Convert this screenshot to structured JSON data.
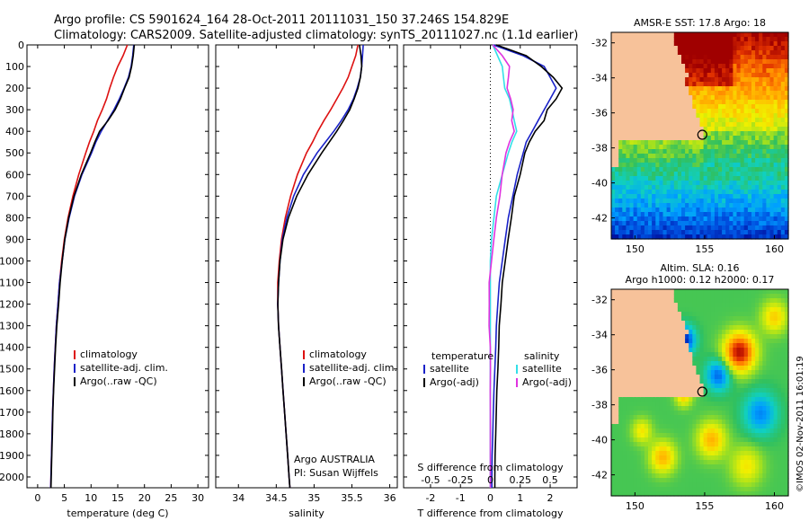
{
  "header": {
    "line1": "Argo profile: CS 5901624_164 28-Oct-2011 20111031_150 37.246S 154.829E",
    "line2": "Climatology: CARS2009. Satellite-adjusted climatology: synTS_20111027.nc (1.1d earlier)"
  },
  "credit": "©IMOS 02-Nov-2011 16:01:19",
  "colors": {
    "climatology": "#dd1111",
    "satellite": "#1a22c8",
    "argo": "#000000",
    "sat_salinity": "#33e0e8",
    "argo_salinity": "#e033e0",
    "land": "#f7c29a"
  },
  "chart_data": [
    {
      "id": "temperature",
      "type": "line",
      "xlabel": "temperature (deg C)",
      "ylabel": "",
      "xlim": [
        -2,
        32
      ],
      "ylim": [
        0,
        2050
      ],
      "y_reversed": true,
      "xticks": [
        0,
        5,
        10,
        15,
        20,
        25,
        30
      ],
      "yticks": [
        0,
        100,
        200,
        300,
        400,
        500,
        600,
        700,
        800,
        900,
        1000,
        1100,
        1200,
        1300,
        1400,
        1500,
        1600,
        1700,
        1800,
        1900,
        2000
      ],
      "depth": [
        0,
        50,
        100,
        150,
        200,
        250,
        300,
        350,
        400,
        450,
        500,
        600,
        700,
        800,
        900,
        1000,
        1100,
        1200,
        1300,
        1400,
        1500,
        1600,
        1700,
        1800,
        1900,
        2000,
        2050
      ],
      "legend": [
        "climatology",
        "satellite-adj. clim.",
        "Argo(..raw -QC)"
      ],
      "series": [
        {
          "name": "climatology",
          "color": "#dd1111",
          "values": [
            16.8,
            16.0,
            15.0,
            14.2,
            13.5,
            12.9,
            12.1,
            11.2,
            10.5,
            9.7,
            9.0,
            7.7,
            6.6,
            5.7,
            5.0,
            4.5,
            4.1,
            3.8,
            3.5,
            3.3,
            3.1,
            2.95,
            2.8,
            2.7,
            2.6,
            2.5,
            2.45
          ]
        },
        {
          "name": "satellite-adj. clim.",
          "color": "#1a22c8",
          "values": [
            18.0,
            17.8,
            17.5,
            17.0,
            16.2,
            15.3,
            14.3,
            13.1,
            11.9,
            10.9,
            10.1,
            8.3,
            6.9,
            5.9,
            5.1,
            4.6,
            4.1,
            3.8,
            3.5,
            3.3,
            3.1,
            2.95,
            2.8,
            2.7,
            2.6,
            2.5,
            2.45
          ]
        },
        {
          "name": "Argo(..raw -QC)",
          "color": "#000000",
          "values": [
            18.1,
            17.9,
            17.6,
            17.1,
            16.3,
            15.5,
            14.5,
            13.2,
            11.6,
            10.7,
            9.9,
            8.2,
            6.8,
            5.8,
            5.1,
            4.6,
            4.2,
            3.9,
            3.6,
            3.35,
            3.15,
            3.0,
            2.85,
            2.75,
            2.65,
            2.55,
            2.5
          ]
        }
      ]
    },
    {
      "id": "salinity",
      "type": "line",
      "xlabel": "salinity",
      "ylabel": "",
      "xlim": [
        33.7,
        36.1
      ],
      "ylim": [
        0,
        2050
      ],
      "y_reversed": true,
      "xticks": [
        34,
        34.5,
        35,
        35.5,
        36
      ],
      "depth": [
        0,
        50,
        100,
        150,
        200,
        250,
        300,
        350,
        400,
        450,
        500,
        600,
        700,
        800,
        900,
        1000,
        1100,
        1200,
        1300,
        1400,
        1500,
        1600,
        1700,
        1800,
        1900,
        2000,
        2050
      ],
      "legend": [
        "climatology",
        "satellite-adj. clim.",
        "Argo(..raw -QC)"
      ],
      "annotation": [
        "Argo AUSTRALIA",
        "PI: Susan Wijffels"
      ],
      "series": [
        {
          "name": "climatology",
          "color": "#dd1111",
          "values": [
            35.58,
            35.55,
            35.5,
            35.45,
            35.38,
            35.3,
            35.22,
            35.13,
            35.05,
            34.98,
            34.9,
            34.78,
            34.69,
            34.62,
            34.57,
            34.54,
            34.52,
            34.52,
            34.53,
            34.55,
            34.57,
            34.59,
            34.61,
            34.63,
            34.65,
            34.67,
            34.68
          ]
        },
        {
          "name": "satellite-adj. clim.",
          "color": "#1a22c8",
          "values": [
            35.65,
            35.64,
            35.63,
            35.61,
            35.57,
            35.52,
            35.45,
            35.36,
            35.26,
            35.15,
            35.04,
            34.86,
            34.73,
            34.64,
            34.58,
            34.55,
            34.53,
            34.52,
            34.53,
            34.55,
            34.57,
            34.59,
            34.61,
            34.63,
            34.65,
            34.67,
            34.68
          ]
        },
        {
          "name": "Argo(..raw -QC)",
          "color": "#000000",
          "values": [
            35.6,
            35.62,
            35.63,
            35.61,
            35.58,
            35.53,
            35.47,
            35.39,
            35.3,
            35.2,
            35.1,
            34.92,
            34.77,
            34.66,
            34.59,
            34.55,
            34.53,
            34.52,
            34.53,
            34.55,
            34.57,
            34.59,
            34.61,
            34.63,
            34.65,
            34.67,
            34.68
          ]
        }
      ]
    },
    {
      "id": "difference",
      "type": "line",
      "xlabel": "T difference from climatology",
      "top_xlabel": "S difference from climatology",
      "xlim": [
        -2.9,
        2.9
      ],
      "ylim": [
        0,
        2050
      ],
      "y_reversed": true,
      "xticks": [
        -2,
        -1,
        0,
        1,
        2
      ],
      "top_xticks": [
        -0.5,
        -0.25,
        0,
        0.25,
        0.5
      ],
      "top_xtick_labels": [
        "-0.5",
        "-0.25",
        "0",
        "0.25",
        "0.5"
      ],
      "depth": [
        0,
        50,
        100,
        150,
        200,
        250,
        300,
        350,
        400,
        450,
        500,
        600,
        700,
        800,
        900,
        1000,
        1100,
        1200,
        1300,
        1400,
        1500,
        1600,
        1700,
        1800,
        1900,
        2000,
        2050
      ],
      "legend": {
        "temperature_title": "temperature",
        "salinity_title": "salinity",
        "items": [
          "satellite",
          "Argo(-adj)",
          "satellite",
          "Argo(-adj)"
        ]
      },
      "series": [
        {
          "name": "satellite",
          "group": "temperature",
          "color": "#1a22c8",
          "values": [
            0.1,
            1.1,
            1.8,
            2.0,
            2.2,
            2.0,
            1.8,
            1.6,
            1.4,
            1.2,
            1.1,
            0.9,
            0.75,
            0.6,
            0.5,
            0.4,
            0.3,
            0.25,
            0.2,
            0.18,
            0.15,
            0.12,
            0.1,
            0.08,
            0.06,
            0.05,
            0.05
          ]
        },
        {
          "name": "Argo(-adj)",
          "group": "temperature",
          "color": "#000000",
          "values": [
            0.2,
            1.2,
            1.7,
            2.1,
            2.4,
            2.2,
            1.9,
            1.8,
            1.5,
            1.3,
            1.15,
            1.0,
            0.8,
            0.7,
            0.6,
            0.5,
            0.4,
            0.35,
            0.3,
            0.28,
            0.25,
            0.22,
            0.2,
            0.18,
            0.16,
            0.15,
            0.15
          ]
        },
        {
          "name": "satellite",
          "group": "salinity",
          "color": "#33e0e8",
          "values": [
            0.02,
            0.06,
            0.1,
            0.11,
            0.12,
            0.16,
            0.18,
            0.2,
            0.22,
            0.18,
            0.15,
            0.1,
            0.05,
            0.03,
            0.01,
            0.0,
            0.0,
            0.0,
            0.0,
            0.0,
            0.0,
            0.0,
            0.0,
            0.0,
            0.0,
            0.0,
            0.0
          ]
        },
        {
          "name": "Argo(-adj)",
          "group": "salinity",
          "color": "#e033e0",
          "values": [
            0.02,
            0.1,
            0.16,
            0.15,
            0.14,
            0.17,
            0.19,
            0.18,
            0.2,
            0.16,
            0.13,
            0.1,
            0.08,
            0.05,
            0.03,
            0.01,
            -0.01,
            -0.01,
            -0.01,
            0.0,
            0.0,
            0.0,
            0.0,
            0.0,
            0.0,
            0.0,
            0.0
          ]
        }
      ]
    },
    {
      "id": "sst_map",
      "type": "heatmap",
      "title": "AMSR-E SST: 17.8 Argo: 18",
      "xlim": [
        148.3,
        161
      ],
      "ylim": [
        -43.2,
        -31.4
      ],
      "xticks": [
        150,
        155,
        160
      ],
      "yticks": [
        -32,
        -34,
        -36,
        -38,
        -40,
        -42
      ],
      "marker": {
        "lon": 154.83,
        "lat": -37.25
      },
      "colormap": [
        "#0010a0",
        "#0050e0",
        "#00a0ff",
        "#10d0c0",
        "#30c060",
        "#a0e020",
        "#f0f000",
        "#ffc000",
        "#ff8000",
        "#e03000",
        "#a00000"
      ]
    },
    {
      "id": "sla_map",
      "type": "heatmap",
      "title": "Altim. SLA: 0.16",
      "subtitle": "Argo h1000: 0.12 h2000: 0.17",
      "xlim": [
        148.3,
        161
      ],
      "ylim": [
        -43.2,
        -31.4
      ],
      "xticks": [
        150,
        155,
        160
      ],
      "yticks": [
        -32,
        -34,
        -36,
        -38,
        -40,
        -42
      ],
      "marker": {
        "lon": 154.83,
        "lat": -37.25
      },
      "colormap": [
        "#0010a0",
        "#0050e0",
        "#00a0ff",
        "#10d0c0",
        "#30c060",
        "#a0e020",
        "#f0f000",
        "#ffc000",
        "#ff8000",
        "#e03000",
        "#a00000"
      ]
    }
  ]
}
